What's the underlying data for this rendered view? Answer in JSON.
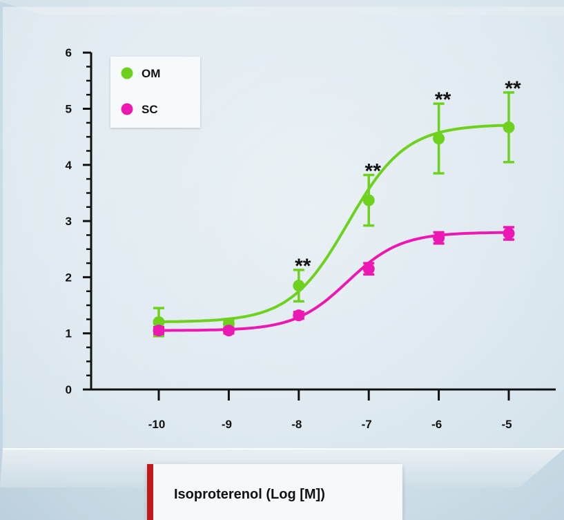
{
  "chart_data": {
    "type": "line",
    "title": "",
    "xlabel": "Isoproterenol (Log [M])",
    "ylabel": "",
    "xlim": [
      -10.8,
      -4.4
    ],
    "ylim": [
      0,
      6
    ],
    "x_ticks": [
      -10,
      -9,
      -8,
      -7,
      -6,
      -5
    ],
    "y_ticks": [
      0,
      1,
      2,
      3,
      4,
      5,
      6
    ],
    "x_tick_labels": [
      "-10",
      "-9",
      "-8",
      "-7",
      "-6",
      "-5"
    ],
    "y_tick_labels": [
      "0",
      "1",
      "2",
      "3",
      "4",
      "5",
      "6"
    ],
    "grid": false,
    "legend_position": "top-left",
    "series": [
      {
        "name": "OM",
        "color": "#6ed11e",
        "x": [
          -10,
          -9,
          -8,
          -7,
          -6,
          -5
        ],
        "y": [
          1.2,
          1.17,
          1.85,
          3.37,
          4.47,
          4.67
        ],
        "error": [
          0.25,
          0.07,
          0.28,
          0.45,
          0.62,
          0.62
        ],
        "fit": {
          "bottom": 1.2,
          "top": 4.72,
          "logEC50": -7.3,
          "hill": 1.05
        }
      },
      {
        "name": "SC",
        "color": "#ec18b4",
        "x": [
          -10,
          -9,
          -8,
          -7,
          -6,
          -5
        ],
        "y": [
          1.05,
          1.05,
          1.32,
          2.15,
          2.7,
          2.78
        ],
        "error": [
          0.06,
          0.05,
          0.06,
          0.1,
          0.1,
          0.11
        ],
        "fit": {
          "bottom": 1.05,
          "top": 2.8,
          "logEC50": -7.3,
          "hill": 1.15
        }
      }
    ],
    "annotations": [
      {
        "text": "**",
        "x": -8,
        "y": 2.13
      },
      {
        "text": "**",
        "x": -7,
        "y": 3.82
      },
      {
        "text": "**",
        "x": -6,
        "y": 5.09
      },
      {
        "text": "**",
        "x": -5,
        "y": 5.29
      }
    ]
  }
}
